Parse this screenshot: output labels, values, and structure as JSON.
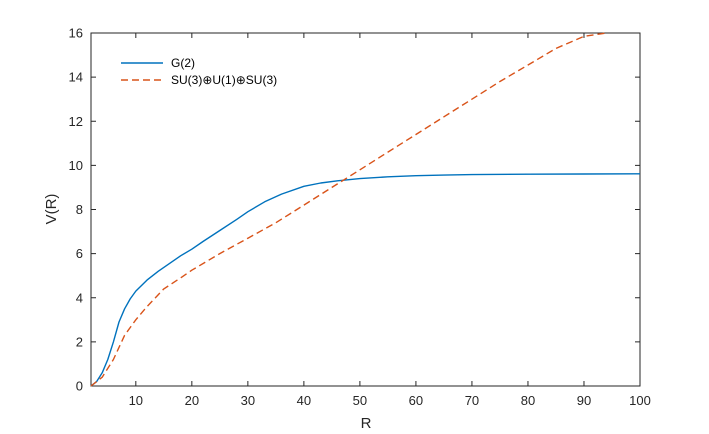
{
  "chart_data": {
    "type": "line",
    "xlabel": "R",
    "ylabel": "V(R)",
    "xlim": [
      2,
      100
    ],
    "ylim": [
      0,
      16
    ],
    "xticks": [
      10,
      20,
      30,
      40,
      50,
      60,
      70,
      80,
      90,
      100
    ],
    "yticks": [
      0,
      2,
      4,
      6,
      8,
      10,
      12,
      14,
      16
    ],
    "grid": false,
    "legend_location": "top-left",
    "series": [
      {
        "name": "G(2)",
        "color": "#0072BD",
        "style": "solid",
        "x": [
          2,
          3,
          4,
          5,
          6,
          7,
          8,
          9,
          10,
          12,
          14,
          16,
          18,
          20,
          22,
          25,
          28,
          30,
          33,
          36,
          40,
          43,
          46,
          50,
          55,
          60,
          65,
          70,
          80,
          90,
          100
        ],
        "y": [
          0,
          0.2,
          0.6,
          1.2,
          2.0,
          2.9,
          3.5,
          3.95,
          4.3,
          4.8,
          5.2,
          5.55,
          5.9,
          6.2,
          6.55,
          7.05,
          7.55,
          7.9,
          8.35,
          8.7,
          9.05,
          9.2,
          9.3,
          9.4,
          9.48,
          9.53,
          9.56,
          9.58,
          9.6,
          9.61,
          9.62
        ]
      },
      {
        "name": "SU(3)⊕U(1)⊕SU(3)",
        "color": "#D95319",
        "style": "dashed",
        "x": [
          2,
          4,
          6,
          8,
          10,
          12,
          15,
          18,
          20,
          25,
          30,
          35,
          40,
          45,
          50,
          55,
          60,
          65,
          70,
          75,
          80,
          85,
          90,
          94
        ],
        "y": [
          0,
          0.4,
          1.2,
          2.3,
          3.0,
          3.6,
          4.4,
          4.9,
          5.25,
          6.0,
          6.7,
          7.4,
          8.2,
          9.0,
          9.8,
          10.6,
          11.4,
          12.2,
          13.0,
          13.8,
          14.55,
          15.3,
          15.85,
          16.0
        ]
      }
    ]
  }
}
